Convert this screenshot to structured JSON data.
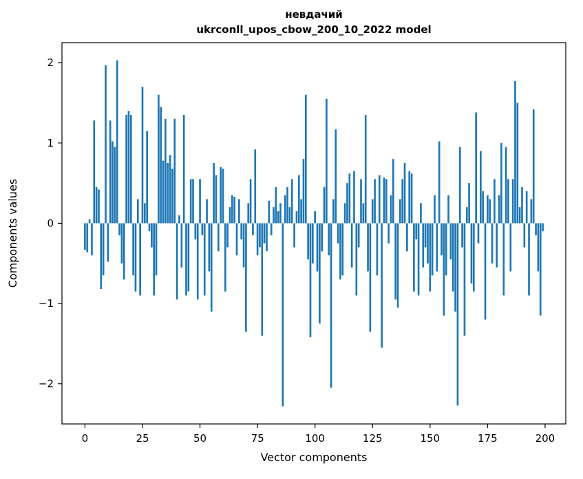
{
  "chart_data": {
    "type": "bar",
    "title": "невдачий",
    "subtitle": "ukrconll_upos_cbow_200_10_2022 model",
    "xlabel": "Vector components",
    "ylabel": "Components values",
    "xlim": [
      -10,
      209
    ],
    "ylim": [
      -2.5,
      2.25
    ],
    "x_ticks": [
      0,
      25,
      50,
      75,
      100,
      125,
      150,
      175,
      200
    ],
    "y_ticks": [
      -2,
      -1,
      0,
      1,
      2
    ],
    "bar_color": "#1f77b4",
    "bar_width": 0.8,
    "grid": false,
    "legend": "none",
    "x_start": 0,
    "values": [
      -0.33,
      -0.36,
      0.05,
      -0.4,
      1.28,
      0.45,
      0.42,
      -0.82,
      -0.65,
      1.97,
      -0.48,
      1.28,
      1.02,
      0.95,
      2.03,
      -0.15,
      -0.5,
      -0.7,
      1.35,
      1.4,
      1.35,
      -0.65,
      -0.85,
      0.3,
      -0.9,
      1.7,
      0.25,
      1.15,
      -0.1,
      -0.3,
      -0.9,
      -0.65,
      1.6,
      1.45,
      0.78,
      1.3,
      0.75,
      0.85,
      0.68,
      1.3,
      -0.95,
      0.1,
      -0.55,
      1.35,
      -0.9,
      -0.85,
      0.55,
      0.55,
      -0.2,
      -0.95,
      0.55,
      -0.15,
      -0.9,
      0.3,
      -0.6,
      -1.1,
      0.75,
      0.6,
      -0.35,
      0.7,
      0.68,
      -0.85,
      -0.3,
      0.2,
      0.35,
      0.33,
      -0.4,
      0.3,
      -0.2,
      -0.55,
      -1.35,
      0.25,
      0.55,
      -0.15,
      0.92,
      -0.4,
      -0.3,
      -1.4,
      -0.25,
      -0.35,
      0.28,
      -0.15,
      0.2,
      0.45,
      0.15,
      0.25,
      -2.28,
      0.35,
      0.45,
      0.2,
      0.55,
      -0.3,
      0.15,
      0.6,
      0.3,
      0.8,
      1.6,
      -0.45,
      -1.42,
      -0.5,
      0.15,
      -0.6,
      -1.25,
      -0.35,
      0.45,
      1.55,
      -0.4,
      -2.05,
      0.3,
      1.17,
      -0.25,
      -0.7,
      -0.65,
      0.25,
      0.5,
      0.62,
      -0.55,
      0.65,
      -0.9,
      -0.3,
      0.55,
      0.25,
      1.35,
      -0.6,
      -1.35,
      0.3,
      0.55,
      -0.65,
      0.6,
      -1.55,
      0.57,
      0.55,
      -0.25,
      0.35,
      0.8,
      -0.95,
      -1.05,
      0.3,
      0.55,
      0.75,
      -0.35,
      0.65,
      0.62,
      -0.85,
      -0.2,
      -0.9,
      0.25,
      -0.55,
      -0.3,
      -0.5,
      -0.85,
      -0.65,
      0.35,
      -0.6,
      1.02,
      -0.4,
      -1.15,
      -0.65,
      0.35,
      -0.45,
      -0.85,
      -1.1,
      -2.27,
      0.95,
      -0.3,
      -1.4,
      0.2,
      0.5,
      -0.75,
      -0.85,
      1.38,
      -0.25,
      0.9,
      0.4,
      -1.2,
      0.35,
      0.3,
      -0.5,
      0.55,
      -0.55,
      0.35,
      1.0,
      -0.9,
      0.95,
      0.55,
      -0.6,
      0.55,
      1.77,
      1.5,
      0.2,
      0.45,
      -0.3,
      0.4,
      -0.9,
      0.3,
      1.42,
      -0.15,
      -0.6,
      -1.15,
      -0.1
    ]
  }
}
